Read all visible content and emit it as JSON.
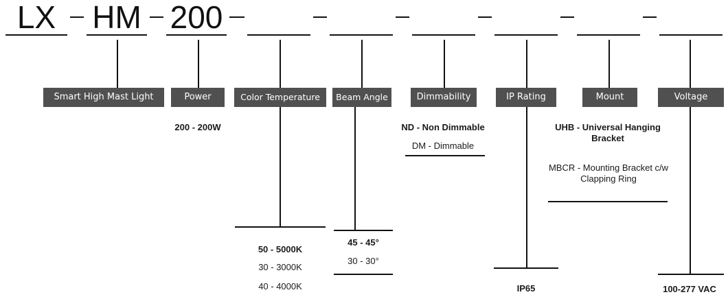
{
  "code": {
    "prefix": "LX",
    "series": "HM",
    "power": "200"
  },
  "labels": {
    "product": "Smart High Mast Light",
    "power": "Power",
    "color_temp": "Color Temperature",
    "beam_angle": "Beam Angle",
    "dimmability": "Dimmability",
    "ip_rating": "IP Rating",
    "mount": "Mount",
    "voltage": "Voltage"
  },
  "options": {
    "power": [
      "200 - 200W"
    ],
    "color_temp": [
      "50 - 5000K",
      "30 - 3000K",
      "40 - 4000K"
    ],
    "beam_angle": [
      "45 - 45°",
      "30 - 30°"
    ],
    "dimmability": [
      "ND - Non Dimmable",
      "DM - Dimmable"
    ],
    "mount": [
      "UHB - Universal Hanging Bracket",
      "MBCR - Mounting Bracket c/w Clapping Ring"
    ],
    "ip_rating": [
      "IP65"
    ],
    "voltage": [
      "100-277 VAC"
    ]
  }
}
